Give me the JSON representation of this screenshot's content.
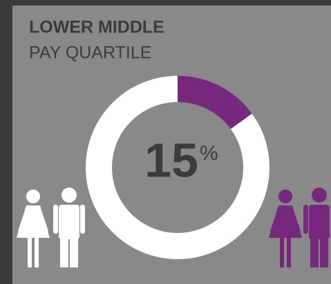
{
  "chart_data": {
    "type": "donut",
    "title": "LOWER MIDDLE",
    "subtitle": "PAY QUARTILE",
    "values": [
      15,
      85
    ],
    "colors": [
      "#76287d",
      "#ffffff"
    ],
    "unit": "%"
  }
}
